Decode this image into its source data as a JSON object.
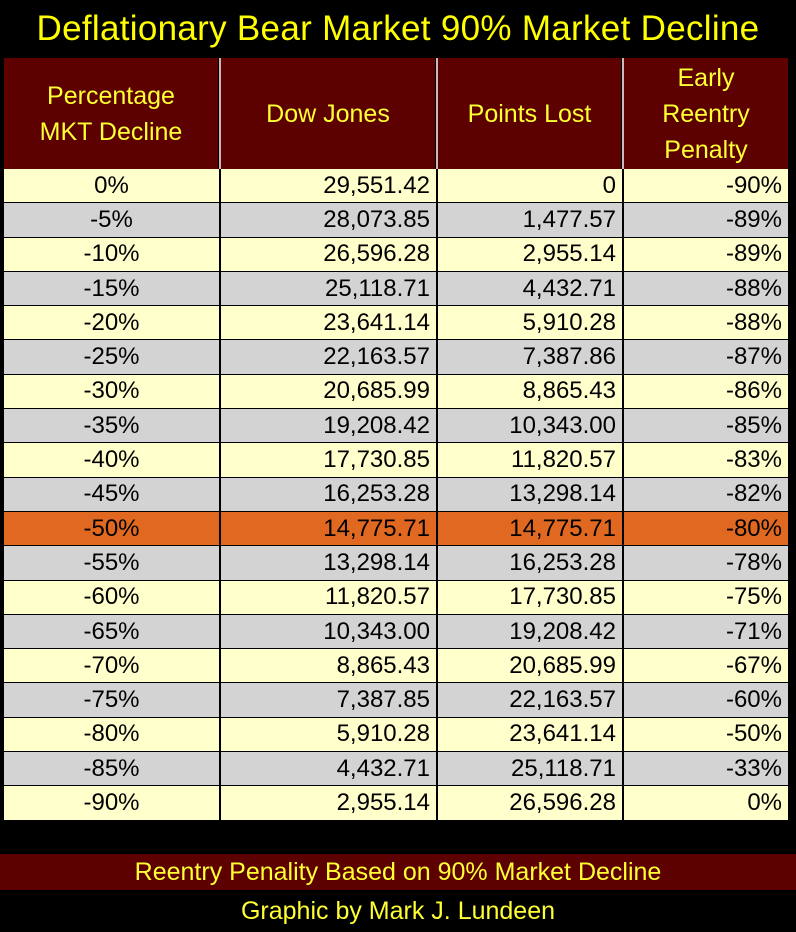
{
  "title": "Deflationary Bear Market  90% Market Decline",
  "chart_data": {
    "type": "table",
    "columns": [
      "Percentage MKT Decline",
      "Dow Jones",
      "Points Lost",
      "Early Reentry Penalty"
    ],
    "header_lines": [
      [
        "Percentage",
        "MKT Decline"
      ],
      [
        "Dow Jones"
      ],
      [
        "Points Lost"
      ],
      [
        "Early",
        "Reentry",
        "Penalty"
      ]
    ],
    "rows": [
      [
        "0%",
        "29,551.42",
        "0",
        "-90%"
      ],
      [
        "-5%",
        "28,073.85",
        "1,477.57",
        "-89%"
      ],
      [
        "-10%",
        "26,596.28",
        "2,955.14",
        "-89%"
      ],
      [
        "-15%",
        "25,118.71",
        "4,432.71",
        "-88%"
      ],
      [
        "-20%",
        "23,641.14",
        "5,910.28",
        "-88%"
      ],
      [
        "-25%",
        "22,163.57",
        "7,387.86",
        "-87%"
      ],
      [
        "-30%",
        "20,685.99",
        "8,865.43",
        "-86%"
      ],
      [
        "-35%",
        "19,208.42",
        "10,343.00",
        "-85%"
      ],
      [
        "-40%",
        "17,730.85",
        "11,820.57",
        "-83%"
      ],
      [
        "-45%",
        "16,253.28",
        "13,298.14",
        "-82%"
      ],
      [
        "-50%",
        "14,775.71",
        "14,775.71",
        "-80%"
      ],
      [
        "-55%",
        "13,298.14",
        "16,253.28",
        "-78%"
      ],
      [
        "-60%",
        "11,820.57",
        "17,730.85",
        "-75%"
      ],
      [
        "-65%",
        "10,343.00",
        "19,208.42",
        "-71%"
      ],
      [
        "-70%",
        "8,865.43",
        "20,685.99",
        "-67%"
      ],
      [
        "-75%",
        "7,387.85",
        "22,163.57",
        "-60%"
      ],
      [
        "-80%",
        "5,910.28",
        "23,641.14",
        "-50%"
      ],
      [
        "-85%",
        "4,432.71",
        "25,118.71",
        "-33%"
      ],
      [
        "-90%",
        "2,955.14",
        "26,596.28",
        "0%"
      ]
    ],
    "highlight_row": "-50%"
  },
  "footer": "Reentry Penality Based on 90% Market Decline",
  "credit": "Graphic by Mark J. Lundeen",
  "colors": {
    "title_text": "#ffff00",
    "header_bg": "#5c0000",
    "row_light": "#ffffcc",
    "row_gray": "#d3d3d3",
    "row_highlight": "#e06820"
  }
}
